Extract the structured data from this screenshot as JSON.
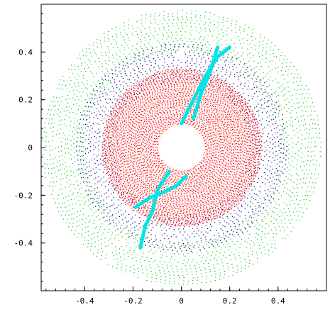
{
  "chart_data": {
    "type": "scatter",
    "title": "",
    "xlabel": "",
    "ylabel": "",
    "xlim": [
      -0.58,
      0.6
    ],
    "ylim": [
      -0.6,
      0.6
    ],
    "x_ticks": [
      -0.4,
      -0.2,
      0,
      0.2,
      0.4
    ],
    "y_ticks": [
      0.4,
      0.2,
      0,
      -0.2,
      -0.4
    ],
    "x_tick_labels": [
      "-0.4",
      "-0.2",
      "0",
      "0.2",
      "0.4"
    ],
    "y_tick_labels": [
      "0.4",
      "0.2",
      "0",
      "-0.2",
      "-0.4"
    ],
    "grid": false,
    "central_hole_radius": 0.095,
    "series": [
      {
        "color": "#00cc00",
        "shape": "ring",
        "r_inner": 0.4,
        "r_outer": 0.58
      },
      {
        "color": "#00008b",
        "shape": "ring",
        "r_inner": 0.28,
        "r_outer": 0.44
      },
      {
        "color": "#ff0000",
        "shape": "disk",
        "r_inner": 0.095,
        "r_outer": 0.33
      },
      {
        "color": "#00e5e5",
        "shape": "spiral-arms",
        "arms": [
          {
            "x": [
              0.0,
              0.05,
              0.1,
              0.15,
              0.2
            ],
            "y": [
              0.1,
              0.2,
              0.3,
              0.38,
              0.42
            ]
          },
          {
            "x": [
              -0.05,
              -0.1,
              -0.12,
              -0.15,
              -0.17
            ],
            "y": [
              -0.1,
              -0.18,
              -0.27,
              -0.33,
              -0.42
            ]
          },
          {
            "x": [
              0.05,
              0.08,
              0.12,
              0.15
            ],
            "y": [
              0.12,
              0.22,
              0.32,
              0.42
            ]
          },
          {
            "x": [
              0.02,
              -0.02,
              -0.08,
              -0.13,
              -0.19
            ],
            "y": [
              -0.12,
              -0.16,
              -0.19,
              -0.21,
              -0.25
            ]
          }
        ]
      }
    ]
  }
}
